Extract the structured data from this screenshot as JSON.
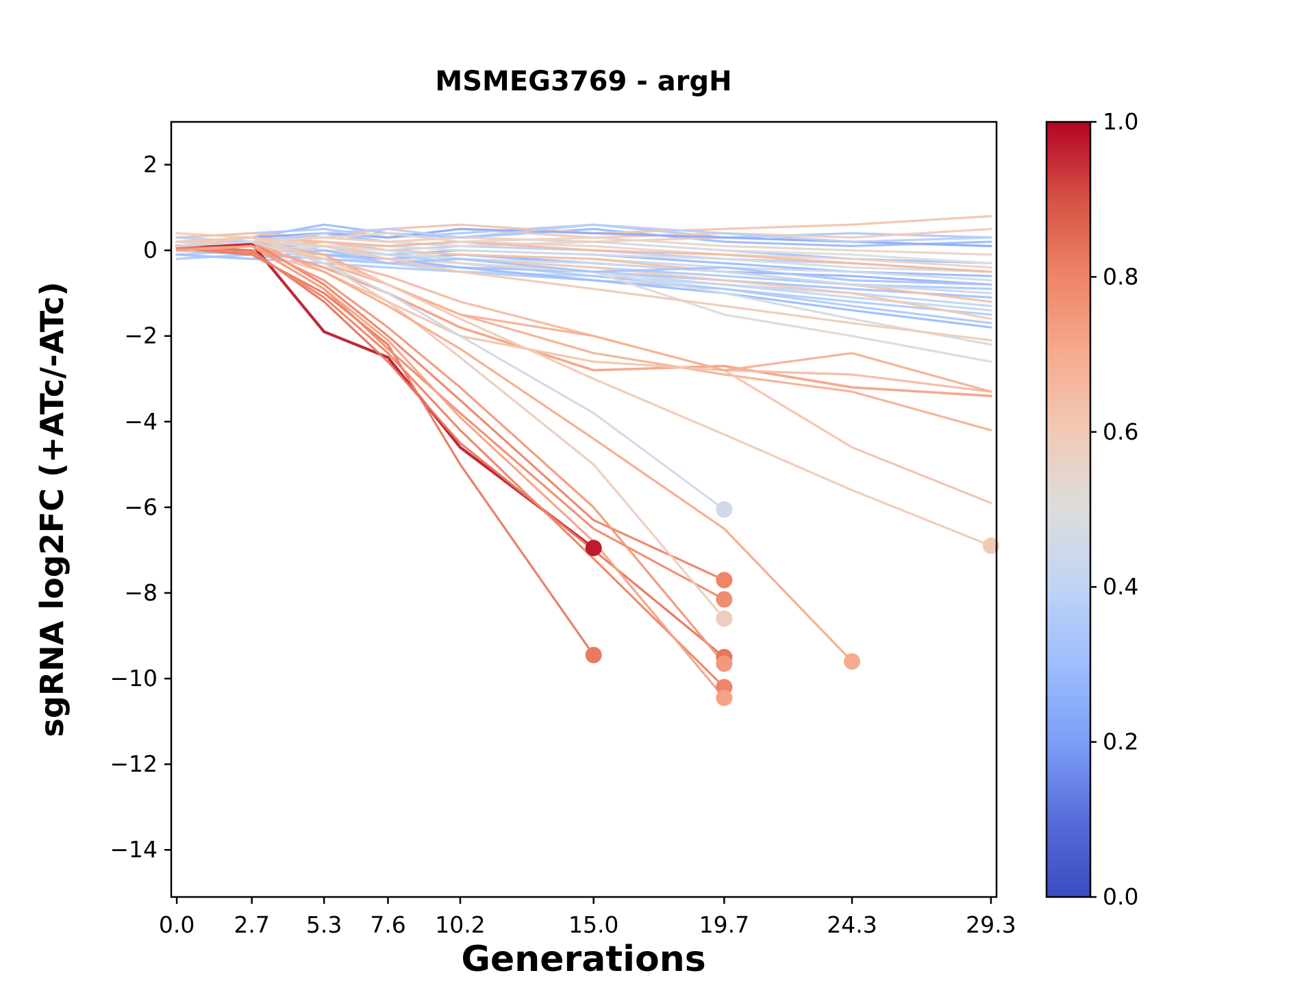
{
  "chart_data": {
    "type": "line",
    "title": "MSMEG3769 - argH",
    "xlabel": "Generations",
    "ylabel": "sgRNA log2FC (+ATc/-ATc)",
    "x_ticks": [
      0.0,
      2.7,
      5.3,
      7.6,
      10.2,
      15.0,
      19.7,
      24.3,
      29.3
    ],
    "x_tick_labels": [
      "0.0",
      "2.7",
      "5.3",
      "7.6",
      "10.2",
      "15.0",
      "19.7",
      "24.3",
      "29.3"
    ],
    "y_ticks": [
      2,
      0,
      -2,
      -4,
      -6,
      -8,
      -10,
      -12,
      -14
    ],
    "y_tick_labels": [
      "2",
      "0",
      "−2",
      "−4",
      "−6",
      "−8",
      "−10",
      "−12",
      "−14"
    ],
    "xlim": [
      -0.2,
      29.5
    ],
    "ylim": [
      -15.1,
      3.0
    ],
    "grid": false,
    "legend": "none",
    "colorbar": {
      "cmap": "coolwarm",
      "vmin": 0.0,
      "vmax": 1.0,
      "ticks": [
        0.0,
        0.2,
        0.4,
        0.6,
        0.8,
        1.0
      ],
      "tick_labels": [
        "0.0",
        "0.2",
        "0.4",
        "0.6",
        "0.8",
        "1.0"
      ],
      "position": "right"
    },
    "series": [
      {
        "color_value": 0.3,
        "y": [
          0.2,
          0.3,
          0.6,
          0.4,
          0.3,
          0.5,
          0.2,
          0.1,
          0.2
        ]
      },
      {
        "color_value": 0.35,
        "y": [
          0.3,
          0.4,
          0.5,
          0.3,
          0.4,
          0.6,
          0.3,
          0.4,
          0.3
        ]
      },
      {
        "color_value": 0.28,
        "y": [
          0.1,
          0.0,
          0.0,
          -0.2,
          -0.1,
          -0.3,
          -0.5,
          -0.6,
          -0.8
        ]
      },
      {
        "color_value": 0.33,
        "y": [
          0.0,
          0.1,
          0.4,
          0.2,
          0.1,
          0.2,
          0.0,
          -0.2,
          -0.3
        ]
      },
      {
        "color_value": 0.38,
        "y": [
          -0.1,
          0.0,
          0.2,
          0.0,
          0.1,
          0.0,
          -0.2,
          -0.3,
          -0.5
        ]
      },
      {
        "color_value": 0.3,
        "y": [
          0.0,
          0.2,
          0.1,
          -0.1,
          0.0,
          -0.1,
          -0.3,
          -0.5,
          -0.6
        ]
      },
      {
        "color_value": 0.35,
        "y": [
          -0.2,
          -0.1,
          0.1,
          -0.1,
          -0.2,
          -0.4,
          -0.6,
          -0.8,
          -0.9
        ]
      },
      {
        "color_value": 0.32,
        "y": [
          0.0,
          -0.1,
          -0.2,
          -0.3,
          -0.4,
          -0.5,
          -0.7,
          -0.9,
          -1.1
        ]
      },
      {
        "color_value": 0.4,
        "y": [
          0.1,
          0.1,
          -0.1,
          -0.3,
          -0.5,
          -0.6,
          -0.8,
          -1.0,
          -1.3
        ]
      },
      {
        "color_value": 0.36,
        "y": [
          -0.1,
          -0.2,
          -0.3,
          -0.4,
          -0.5,
          -0.7,
          -0.9,
          -1.2,
          -1.5
        ]
      },
      {
        "color_value": 0.42,
        "y": [
          0.0,
          0.1,
          0.0,
          -0.2,
          -0.3,
          -0.5,
          -0.8,
          -1.1,
          -1.4
        ]
      },
      {
        "color_value": 0.45,
        "y": [
          0.2,
          0.1,
          0.2,
          0.0,
          -0.1,
          -0.2,
          -0.4,
          -0.5,
          -0.7
        ]
      },
      {
        "color_value": 0.48,
        "y": [
          0.1,
          0.2,
          0.1,
          0.1,
          0.0,
          -0.1,
          -0.2,
          -0.4,
          -0.5
        ]
      },
      {
        "color_value": 0.5,
        "y": [
          0.3,
          0.2,
          0.3,
          0.2,
          0.1,
          0.2,
          0.0,
          -0.1,
          -0.3
        ]
      },
      {
        "color_value": 0.55,
        "y": [
          0.2,
          0.3,
          0.2,
          0.1,
          0.2,
          0.1,
          -0.1,
          -0.2,
          -0.4
        ]
      },
      {
        "color_value": 0.6,
        "y": [
          0.4,
          0.3,
          0.4,
          0.3,
          0.5,
          0.3,
          0.4,
          0.3,
          0.5
        ]
      },
      {
        "color_value": 0.62,
        "y": [
          0.3,
          0.4,
          0.3,
          0.5,
          0.6,
          0.4,
          0.5,
          0.6,
          0.8
        ]
      },
      {
        "color_value": 0.58,
        "y": [
          0.2,
          0.2,
          0.3,
          0.2,
          0.3,
          0.2,
          0.3,
          0.2,
          0.1
        ]
      },
      {
        "color_value": 0.65,
        "y": [
          0.1,
          0.3,
          0.2,
          0.1,
          0.2,
          0.0,
          -0.1,
          -0.3,
          -0.5
        ]
      },
      {
        "color_value": 0.63,
        "y": [
          0.0,
          0.1,
          0.2,
          0.0,
          -0.1,
          -0.2,
          -0.5,
          -0.8,
          -1.2
        ]
      },
      {
        "color_value": 0.6,
        "y": [
          0.1,
          0.0,
          0.1,
          -0.1,
          -0.2,
          -0.4,
          -0.7,
          -1.0,
          -1.6
        ]
      },
      {
        "color_value": 0.35,
        "y": [
          0.1,
          0.2,
          0.0,
          -0.1,
          -0.3,
          -0.6,
          -0.9,
          -1.3,
          -1.7
        ]
      },
      {
        "color_value": 0.3,
        "y": [
          0.0,
          0.1,
          -0.1,
          -0.2,
          -0.4,
          -0.7,
          -1.0,
          -1.4,
          -1.8
        ]
      },
      {
        "color_value": 0.44,
        "y": [
          0.2,
          0.1,
          0.0,
          -0.1,
          -0.2,
          -0.3,
          -0.5,
          -0.8,
          -1.0
        ]
      },
      {
        "color_value": 0.52,
        "y": [
          0.0,
          0.0,
          0.1,
          -0.2,
          -0.3,
          -0.5,
          -1.5,
          -2.0,
          -2.6
        ]
      },
      {
        "color_value": 0.47,
        "y": [
          0.1,
          0.2,
          0.1,
          0.0,
          -0.2,
          -0.5,
          -1.0,
          -1.6,
          -2.2
        ]
      },
      {
        "color_value": 0.25,
        "y": [
          0.2,
          0.3,
          0.4,
          0.3,
          0.5,
          0.4,
          0.3,
          0.2,
          0.1
        ]
      },
      {
        "color_value": 0.38,
        "y": [
          0.3,
          0.2,
          0.4,
          0.5,
          0.3,
          0.6,
          0.4,
          0.2,
          0.3
        ]
      },
      {
        "color_value": 0.33,
        "y": [
          -0.1,
          -0.2,
          0.0,
          -0.3,
          -0.2,
          -0.5,
          -0.4,
          -0.7,
          -0.8
        ]
      },
      {
        "color_value": 0.55,
        "y": [
          0.1,
          0.2,
          0.3,
          0.4,
          0.2,
          0.3,
          0.1,
          0.0,
          -0.1
        ]
      },
      {
        "color_value": 0.72,
        "lw": 3.6,
        "y": [
          0.1,
          0.1,
          -0.4,
          -1.0,
          -1.8,
          -2.8,
          -2.7,
          -3.2,
          -3.4
        ]
      },
      {
        "color_value": 0.68,
        "y": [
          0.0,
          0.2,
          -0.3,
          -0.8,
          -1.5,
          -2.4,
          -2.9,
          -3.3,
          -4.2
        ]
      },
      {
        "color_value": 0.62,
        "y": [
          0.1,
          0.0,
          -0.5,
          -1.2,
          -2.0,
          -2.6,
          -2.8,
          -4.6,
          -5.9
        ]
      },
      {
        "color_value": 0.65,
        "y": [
          0.0,
          0.1,
          -0.2,
          -0.6,
          -1.2,
          -2.0,
          -2.8,
          -2.9,
          -3.3
        ]
      },
      {
        "color_value": 0.6,
        "y": [
          0.2,
          0.3,
          0.1,
          -0.2,
          -0.5,
          -0.9,
          -1.3,
          -1.7,
          -2.1
        ]
      },
      {
        "color_value": 0.68,
        "y": [
          0.1,
          0.2,
          -0.1,
          -0.8,
          -1.5,
          -2.0,
          -2.8,
          -2.4,
          -3.3
        ]
      },
      {
        "color_value": 0.97,
        "lw": 4.2,
        "x": [
          0.0,
          2.7,
          5.3,
          7.6,
          10.2,
          15.0
        ],
        "y": [
          0.1,
          0.15,
          -1.9,
          -2.5,
          -4.6,
          -6.95
        ],
        "end_marker": true
      },
      {
        "color_value": 0.82,
        "x": [
          0.0,
          2.7,
          5.3,
          7.6,
          10.2,
          15.0
        ],
        "y": [
          0.05,
          -0.1,
          -1.0,
          -2.2,
          -5.0,
          -9.45
        ],
        "end_marker": true
      },
      {
        "color_value": 0.8,
        "x": [
          0.0,
          2.7,
          5.3,
          7.6,
          10.2,
          15.0,
          19.7
        ],
        "y": [
          0.1,
          0.2,
          -0.8,
          -2.0,
          -3.5,
          -6.3,
          -7.7
        ],
        "end_marker": true
      },
      {
        "color_value": 0.78,
        "x": [
          0.0,
          2.7,
          5.3,
          7.6,
          10.2,
          15.0,
          19.7
        ],
        "y": [
          0.0,
          0.1,
          -0.9,
          -2.3,
          -3.8,
          -6.5,
          -8.15
        ],
        "end_marker": true
      },
      {
        "color_value": 0.58,
        "x": [
          0.0,
          2.7,
          5.3,
          7.6,
          10.2,
          15.0,
          19.7
        ],
        "y": [
          0.1,
          0.3,
          -0.3,
          -1.2,
          -2.5,
          -5.0,
          -8.6
        ],
        "end_marker": true
      },
      {
        "color_value": 0.83,
        "x": [
          0.0,
          2.7,
          5.3,
          7.6,
          10.2,
          15.0,
          19.7
        ],
        "y": [
          0.1,
          0.0,
          -1.2,
          -2.6,
          -4.5,
          -7.0,
          -9.5
        ],
        "end_marker": true
      },
      {
        "color_value": 0.75,
        "x": [
          0.0,
          2.7,
          5.3,
          7.6,
          10.2,
          15.0,
          19.7
        ],
        "y": [
          0.0,
          0.1,
          -0.7,
          -1.8,
          -3.2,
          -6.0,
          -9.65
        ],
        "end_marker": true
      },
      {
        "color_value": 0.8,
        "x": [
          0.0,
          2.7,
          5.3,
          7.6,
          10.2,
          15.0,
          19.7
        ],
        "y": [
          0.05,
          -0.05,
          -1.1,
          -2.4,
          -4.2,
          -7.2,
          -10.2
        ],
        "end_marker": true
      },
      {
        "color_value": 0.72,
        "x": [
          0.0,
          2.7,
          5.3,
          7.6,
          10.2,
          15.0,
          19.7
        ],
        "y": [
          0.0,
          0.1,
          -0.9,
          -2.1,
          -3.9,
          -6.8,
          -10.45
        ],
        "end_marker": true
      },
      {
        "color_value": 0.7,
        "x": [
          0.0,
          2.7,
          5.3,
          7.6,
          10.2,
          15.0,
          19.7,
          24.3
        ],
        "y": [
          0.1,
          0.2,
          -0.5,
          -1.3,
          -2.3,
          -4.4,
          -6.5,
          -9.6
        ],
        "end_marker": true
      },
      {
        "color_value": 0.6,
        "y": [
          0.2,
          0.3,
          -0.2,
          -0.8,
          -1.6,
          -3.0,
          -4.3,
          -5.6,
          -6.9
        ],
        "end_marker": true
      },
      {
        "color_value": 0.45,
        "x": [
          0.0,
          2.7,
          5.3,
          7.6,
          10.2,
          15.0,
          19.7
        ],
        "y": [
          0.1,
          0.2,
          -0.3,
          -1.0,
          -2.0,
          -3.8,
          -6.05
        ],
        "end_marker": true
      }
    ]
  }
}
